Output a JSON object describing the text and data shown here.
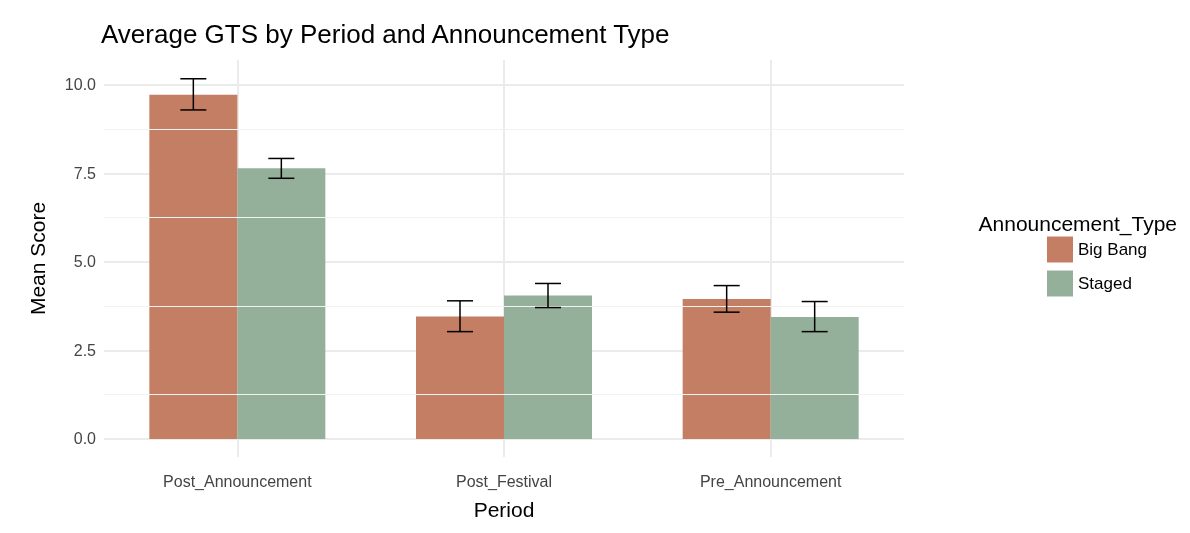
{
  "chart_data": {
    "type": "bar",
    "title": "Average GTS by Period and Announcement Type",
    "xlabel": "Period",
    "ylabel": "Mean Score",
    "legend_title": "Announcement_Type",
    "categories": [
      "Post_Announcement",
      "Post_Festival",
      "Pre_Announcement"
    ],
    "series": [
      {
        "name": "Big Bang",
        "color": "#c47e64",
        "values": [
          9.72,
          3.46,
          3.95
        ],
        "errors": [
          [
            9.29,
            10.17
          ],
          [
            3.03,
            3.9
          ],
          [
            3.58,
            4.33
          ]
        ]
      },
      {
        "name": "Staged",
        "color": "#94b09a",
        "values": [
          7.64,
          4.05,
          3.44
        ],
        "errors": [
          [
            7.36,
            7.92
          ],
          [
            3.71,
            4.39
          ],
          [
            3.03,
            3.88
          ]
        ]
      }
    ],
    "ylim": [
      -0.51,
      10.7
    ],
    "yticks": [
      {
        "value": 0,
        "label": "0.0"
      },
      {
        "value": 2.5,
        "label": "2.5"
      },
      {
        "value": 5,
        "label": "5.0"
      },
      {
        "value": 7.5,
        "label": "7.5"
      },
      {
        "value": 10,
        "label": "10.0"
      }
    ],
    "grid": true,
    "legend": "right"
  }
}
